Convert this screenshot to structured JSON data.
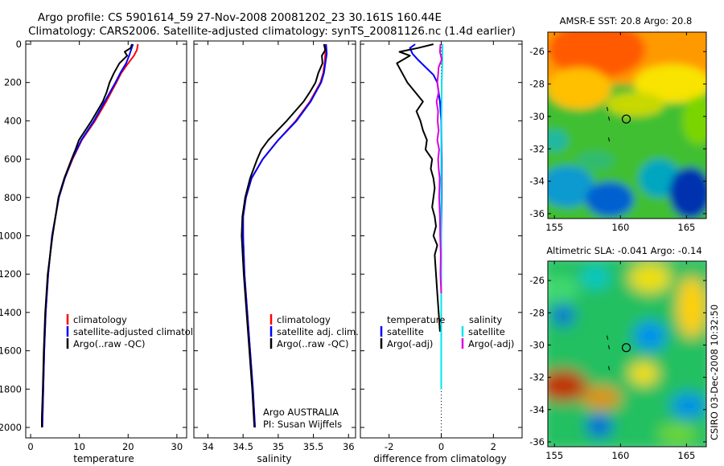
{
  "figure": {
    "title_line1": "Argo profile: CS 5901614_59 27-Nov-2008 20081202_23 30.161S 160.44E",
    "title_line2": "Climatology: CARS2006. Satellite-adjusted climatology: synTS_20081126.nc (1.4d earlier)",
    "side_stamp": "CSIRO 03-Dec-2008 10:32:50",
    "argo_credit_1": "Argo AUSTRALIA",
    "argo_credit_2": "PI: Susan Wijffels"
  },
  "colors": {
    "climatology": "#ff0000",
    "satellite": "#0000ff",
    "argo": "#000000",
    "salinity_satellite": "#00e5ee",
    "salinity_argo": "#e000e0"
  },
  "chart_data": [
    {
      "id": "temperature",
      "type": "line",
      "xlabel": "temperature",
      "ylabel": "",
      "xlim": [
        -1,
        32
      ],
      "ylim": [
        2050,
        0
      ],
      "xticks": [
        0,
        10,
        20,
        30
      ],
      "yticks": [
        0,
        200,
        400,
        600,
        800,
        1000,
        1200,
        1400,
        1600,
        1800,
        2000
      ],
      "legend": [
        "climatology",
        "satellite-adjusted climatology",
        "Argo(..raw -QC)"
      ],
      "series": [
        {
          "name": "climatology",
          "color": "#ff0000",
          "depth": [
            0,
            30,
            60,
            100,
            150,
            200,
            300,
            400,
            500,
            600,
            700,
            800,
            1000,
            1200,
            1400,
            1600,
            1800,
            2000
          ],
          "values": [
            22.0,
            21.8,
            21.2,
            20.0,
            18.6,
            17.6,
            15.5,
            13.2,
            10.5,
            8.6,
            7.0,
            5.8,
            4.4,
            3.6,
            3.1,
            2.8,
            2.6,
            2.4
          ]
        },
        {
          "name": "satellite-adjusted climatology",
          "color": "#0000ff",
          "depth": [
            0,
            30,
            60,
            100,
            150,
            200,
            300,
            400,
            500,
            600,
            700,
            800,
            1000,
            1200,
            1400,
            1600,
            1800,
            2000
          ],
          "values": [
            21.0,
            20.6,
            20.2,
            19.6,
            18.4,
            17.4,
            15.2,
            13.0,
            10.4,
            8.5,
            7.0,
            5.8,
            4.4,
            3.6,
            3.1,
            2.8,
            2.6,
            2.4
          ]
        },
        {
          "name": "Argo(..raw -QC)",
          "color": "#000000",
          "depth": [
            0,
            20,
            40,
            60,
            100,
            150,
            200,
            250,
            300,
            400,
            500,
            550,
            600,
            700,
            800,
            900,
            1000,
            1200,
            1400,
            1600,
            1800,
            1950,
            2000
          ],
          "values": [
            20.8,
            20.5,
            19.3,
            19.8,
            18.2,
            17.1,
            16.2,
            15.6,
            14.8,
            12.5,
            9.9,
            9.2,
            8.4,
            6.9,
            5.7,
            5.1,
            4.5,
            3.5,
            3.0,
            2.7,
            2.5,
            2.3,
            2.3
          ]
        }
      ]
    },
    {
      "id": "salinity",
      "type": "line",
      "xlabel": "salinity",
      "ylabel": "",
      "xlim": [
        33.8,
        36.1
      ],
      "ylim": [
        2050,
        0
      ],
      "xticks": [
        34,
        34.5,
        35,
        35.5,
        36
      ],
      "legend": [
        "climatology",
        "satellite adj. clim.",
        "Argo(..raw -QC)"
      ],
      "series": [
        {
          "name": "climatology",
          "color": "#ff0000",
          "depth": [
            0,
            50,
            100,
            150,
            200,
            300,
            400,
            500,
            600,
            700,
            800,
            900,
            1000,
            1200,
            1400,
            1600,
            1800,
            2000
          ],
          "values": [
            35.66,
            35.67,
            35.66,
            35.64,
            35.6,
            35.45,
            35.25,
            35.0,
            34.78,
            34.62,
            34.54,
            34.5,
            34.5,
            34.52,
            34.56,
            34.6,
            34.64,
            34.67
          ]
        },
        {
          "name": "satellite adj. clim.",
          "color": "#0000ff",
          "depth": [
            0,
            50,
            100,
            150,
            200,
            300,
            400,
            500,
            600,
            700,
            800,
            900,
            1000,
            1200,
            1400,
            1600,
            1800,
            2000
          ],
          "values": [
            35.68,
            35.69,
            35.67,
            35.65,
            35.61,
            35.46,
            35.26,
            35.0,
            34.78,
            34.62,
            34.54,
            34.5,
            34.5,
            34.52,
            34.56,
            34.6,
            34.64,
            34.67
          ]
        },
        {
          "name": "Argo(..raw -QC)",
          "color": "#000000",
          "depth": [
            0,
            30,
            60,
            100,
            150,
            200,
            250,
            300,
            400,
            500,
            550,
            600,
            700,
            800,
            900,
            1000,
            1200,
            1400,
            1600,
            1800,
            2000
          ],
          "values": [
            35.65,
            35.67,
            35.62,
            35.63,
            35.57,
            35.53,
            35.45,
            35.36,
            35.12,
            34.86,
            34.76,
            34.7,
            34.6,
            34.53,
            34.49,
            34.48,
            34.51,
            34.55,
            34.59,
            34.63,
            34.66
          ]
        }
      ]
    },
    {
      "id": "difference",
      "type": "line",
      "xlabel": "difference from climatology",
      "ylabel": "",
      "xlim": [
        -3.1,
        3.1
      ],
      "ylim": [
        2050,
        0
      ],
      "xticks": [
        -2,
        0,
        2
      ],
      "legend_left_title": "temperature",
      "legend_right_title": "salinity",
      "legend": [
        "satellite",
        "Argo(-adj)",
        "satellite",
        "Argo(-adj)"
      ],
      "series": [
        {
          "name": "satellite",
          "group": "temperature",
          "color": "#0000ff",
          "depth": [
            0,
            20,
            50,
            80,
            120,
            160,
            200,
            300,
            400,
            600,
            800,
            1000,
            1200,
            1400,
            1600,
            1800,
            1800
          ],
          "values": [
            -1.0,
            -1.2,
            -1.1,
            -0.9,
            -0.6,
            -0.3,
            -0.15,
            -0.05,
            0.0,
            0.02,
            0.02,
            0.0,
            0.0,
            0.0,
            0.0,
            0.0,
            0.0
          ]
        },
        {
          "name": "Argo(-adj)",
          "group": "temperature",
          "color": "#000000",
          "depth": [
            0,
            20,
            40,
            60,
            100,
            150,
            200,
            250,
            300,
            350,
            400,
            450,
            500,
            550,
            600,
            650,
            700,
            750,
            800,
            850,
            900,
            950,
            1000,
            1050,
            1100,
            1200,
            1300,
            1400,
            1500
          ],
          "values": [
            -0.3,
            -0.9,
            -1.6,
            -1.2,
            -1.7,
            -1.5,
            -1.3,
            -1.0,
            -0.7,
            -0.95,
            -0.8,
            -0.7,
            -0.55,
            -0.6,
            -0.35,
            -0.4,
            -0.3,
            -0.25,
            -0.3,
            -0.35,
            -0.25,
            -0.2,
            -0.3,
            -0.15,
            -0.25,
            -0.2,
            -0.15,
            -0.1,
            -0.05
          ]
        },
        {
          "name": "satellite",
          "group": "salinity",
          "color": "#00e5ee",
          "depth": [
            0,
            100,
            200,
            400,
            600,
            800,
            1000,
            1200,
            1400,
            1600,
            1800
          ],
          "values": [
            0.05,
            0.04,
            0.02,
            0.01,
            0.0,
            0.0,
            0.0,
            0.0,
            0.0,
            0.0,
            0.0
          ]
        },
        {
          "name": "Argo(-adj)",
          "group": "salinity",
          "color": "#e000e0",
          "depth": [
            0,
            40,
            80,
            120,
            160,
            200,
            250,
            300,
            350,
            400,
            450,
            500,
            550,
            600,
            650,
            700,
            800,
            900,
            1000,
            1100,
            1200,
            1300
          ],
          "values": [
            -0.03,
            -0.05,
            0.02,
            -0.1,
            -0.12,
            -0.15,
            -0.1,
            -0.18,
            -0.12,
            -0.14,
            -0.1,
            -0.15,
            -0.08,
            -0.12,
            -0.1,
            -0.06,
            -0.08,
            -0.05,
            -0.04,
            -0.02,
            -0.03,
            0.0
          ]
        }
      ]
    },
    {
      "id": "sst_map",
      "type": "heatmap",
      "title": "AMSR-E SST: 20.8 Argo: 20.8",
      "xlim": [
        154.5,
        166.5
      ],
      "ylim": [
        -36.3,
        -24.8
      ],
      "xticks": [
        155,
        160,
        165
      ],
      "yticks": [
        -26,
        -28,
        -30,
        -32,
        -34,
        -36
      ],
      "marker": {
        "lon": 160.44,
        "lat": -30.161
      }
    },
    {
      "id": "sla_map",
      "type": "heatmap",
      "title": "Altimetric SLA: -0.041 Argo: -0.14",
      "xlim": [
        154.5,
        166.5
      ],
      "ylim": [
        -36.3,
        -24.8
      ],
      "xticks": [
        155,
        160,
        165
      ],
      "yticks": [
        -26,
        -28,
        -30,
        -32,
        -34,
        -36
      ],
      "marker": {
        "lon": 160.44,
        "lat": -30.161
      }
    }
  ]
}
